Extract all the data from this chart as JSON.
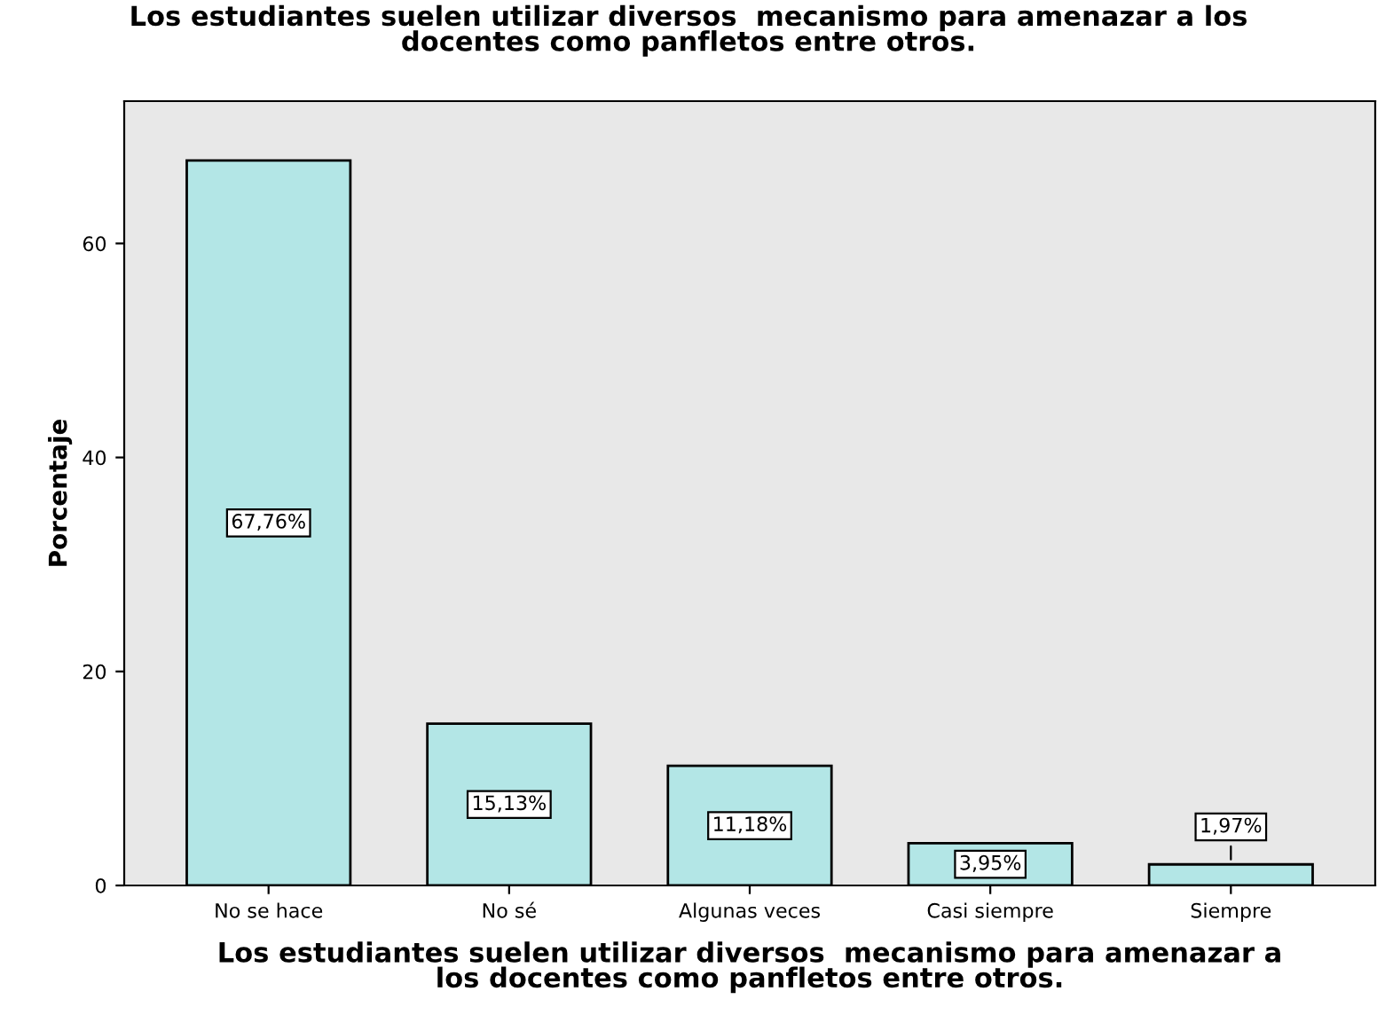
{
  "chart_data": {
    "type": "bar",
    "title": "Los estudiantes suelen utilizar diversos  mecanismo para amenazar a los\ndocentes como panfletos entre otros.",
    "xlabel": "Los estudiantes suelen utilizar diversos  mecanismo para amenazar a\nlos docentes como panfletos entre otros.",
    "ylabel": "Porcentaje",
    "categories": [
      "No se hace",
      "No sé",
      "Algunas veces",
      "Casi siempre",
      "Siempre"
    ],
    "values": [
      67.76,
      15.13,
      11.18,
      3.95,
      1.97
    ],
    "value_labels": [
      "67,76%",
      "15,13%",
      "11,18%",
      "3,95%",
      "1,97%"
    ],
    "color": "#b3e6e6",
    "ylim": [
      0,
      73.3
    ],
    "yticks": [
      0,
      20,
      40,
      60
    ],
    "grid": false,
    "legend": false
  }
}
